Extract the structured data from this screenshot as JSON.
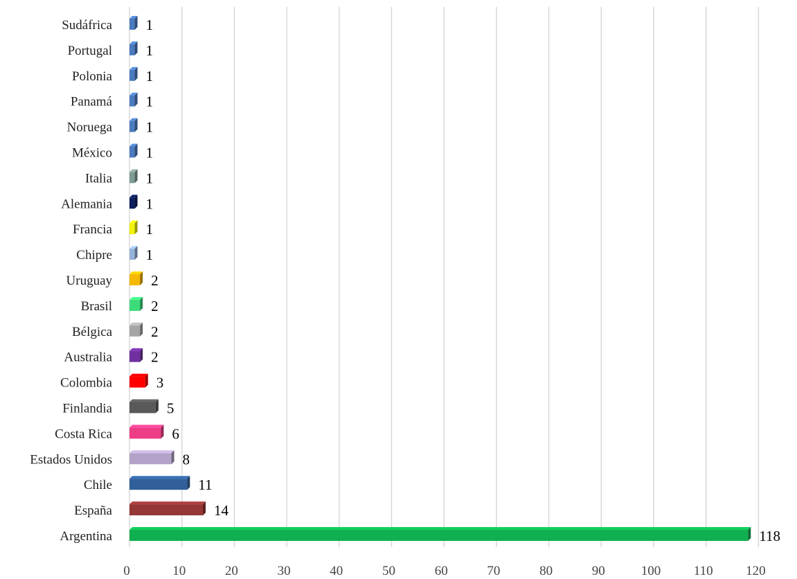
{
  "chart_data": {
    "type": "bar",
    "orientation": "horizontal",
    "style": "3d",
    "title": "",
    "xlabel": "",
    "ylabel": "",
    "xlim": [
      0,
      120
    ],
    "xticks": [
      0,
      10,
      20,
      30,
      40,
      50,
      60,
      70,
      80,
      90,
      100,
      110,
      120
    ],
    "grid": "vertical",
    "legend": "none",
    "bars": [
      {
        "category": "Sudáfrica",
        "value": 1,
        "color": "#4a7bbf"
      },
      {
        "category": "Portugal",
        "value": 1,
        "color": "#4a7bbf"
      },
      {
        "category": "Polonia",
        "value": 1,
        "color": "#4a7bbf"
      },
      {
        "category": "Panamá",
        "value": 1,
        "color": "#4a7bbf"
      },
      {
        "category": "Noruega",
        "value": 1,
        "color": "#4a7bbf"
      },
      {
        "category": "México",
        "value": 1,
        "color": "#4a7bbf"
      },
      {
        "category": "Italia",
        "value": 1,
        "color": "#7f9c94"
      },
      {
        "category": "Alemania",
        "value": 1,
        "color": "#0b1f5c"
      },
      {
        "category": "Francia",
        "value": 1,
        "color": "#f2f20a"
      },
      {
        "category": "Chipre",
        "value": 1,
        "color": "#95b2d8"
      },
      {
        "category": "Uruguay",
        "value": 2,
        "color": "#f5b800"
      },
      {
        "category": "Brasil",
        "value": 2,
        "color": "#3ddc7a"
      },
      {
        "category": "Bélgica",
        "value": 2,
        "color": "#a5a5a5"
      },
      {
        "category": "Australia",
        "value": 2,
        "color": "#7030a0"
      },
      {
        "category": "Colombia",
        "value": 3,
        "color": "#ff0000"
      },
      {
        "category": "Finlandia",
        "value": 5,
        "color": "#595959"
      },
      {
        "category": "Costa Rica",
        "value": 6,
        "color": "#ee3d86"
      },
      {
        "category": "Estados Unidos",
        "value": 8,
        "color": "#b3a2c7"
      },
      {
        "category": "Chile",
        "value": 11,
        "color": "#305f9a"
      },
      {
        "category": "España",
        "value": 14,
        "color": "#953735"
      },
      {
        "category": "Argentina",
        "value": 118,
        "color": "#10b050"
      }
    ]
  }
}
